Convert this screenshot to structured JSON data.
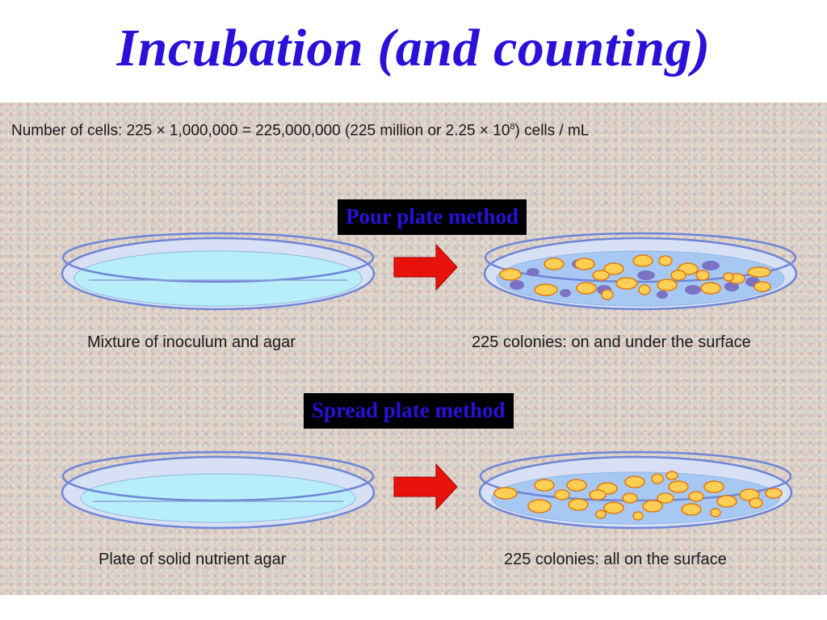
{
  "title": "Incubation (and counting)",
  "formula": {
    "prefix": "Number of cells: 225 × 1,000,000 = 225,000,000 (225 million or 2.25  × 10",
    "exponent": "8",
    "suffix": ") cells / mL"
  },
  "methods": [
    {
      "label": "Pour plate method",
      "before_caption": "Mixture  of inoculum and agar",
      "after_caption": "225 colonies: on and  under the surface",
      "colony_count": 225
    },
    {
      "label": "Spread plate method",
      "before_caption": "Plate  of solid nutrient agar",
      "after_caption": "225 colonies: all  on the surface",
      "colony_count": 225
    }
  ],
  "colors": {
    "title": "#2a10d8",
    "label_text": "#2a10d8",
    "label_bg": "#000000",
    "agar": "#b8eefa",
    "dish_rim": "#6f86d6",
    "colony_fill": "#ffce55",
    "colony_stroke": "#e07a10",
    "subsurface_colony": "#7b72c4",
    "arrow": "#e8120c"
  }
}
